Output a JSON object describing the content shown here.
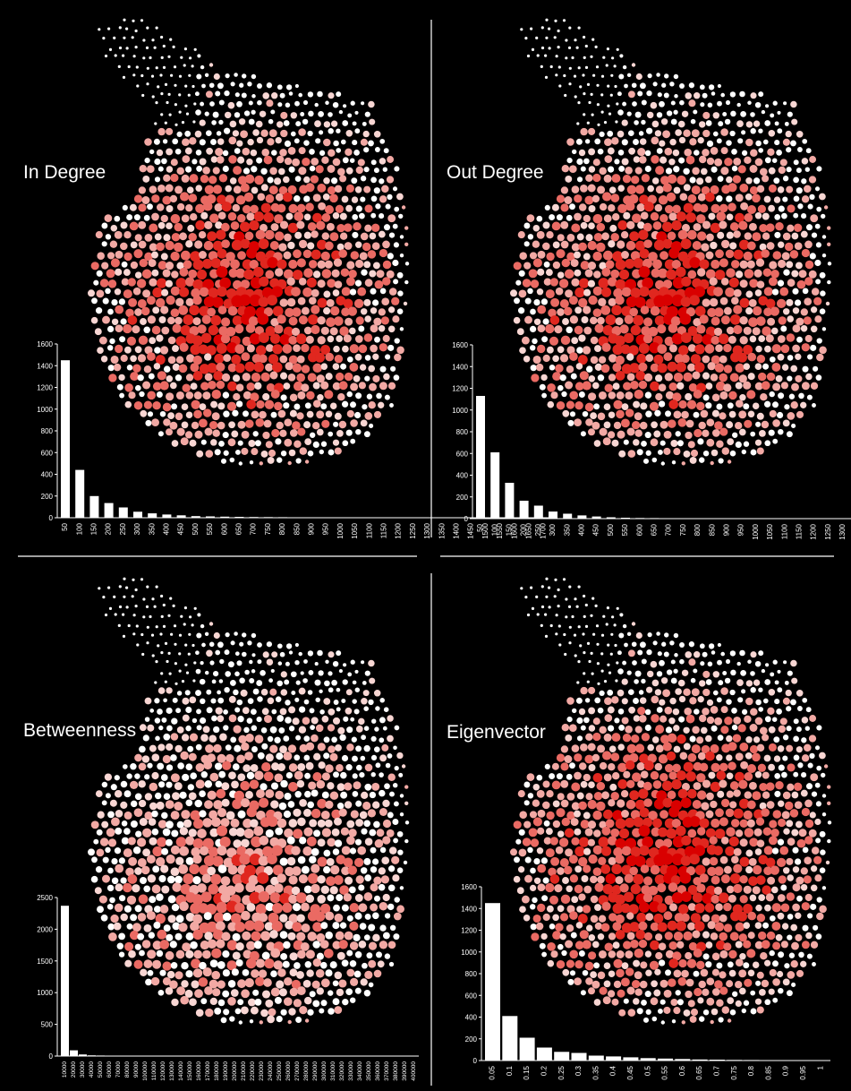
{
  "chart_data": [
    {
      "type": "bar",
      "title": "In Degree",
      "xlabel": "",
      "ylabel": "",
      "ylim": [
        0,
        1600
      ],
      "yticks": [
        0,
        200,
        400,
        600,
        800,
        1000,
        1200,
        1400,
        1600
      ],
      "categories": [
        "50",
        "100",
        "150",
        "200",
        "250",
        "300",
        "350",
        "400",
        "450",
        "500",
        "550",
        "600",
        "650",
        "700",
        "750",
        "800",
        "850",
        "900",
        "950",
        "1000",
        "1050",
        "1100",
        "1150",
        "1200",
        "1250",
        "1300",
        "1350",
        "1400",
        "1450",
        "1500",
        "1550",
        "1600",
        "1650",
        "1700"
      ],
      "values": [
        1450,
        440,
        200,
        135,
        95,
        55,
        40,
        30,
        22,
        15,
        12,
        10,
        8,
        7,
        6,
        5,
        4,
        4,
        3,
        3,
        3,
        2,
        2,
        2,
        1,
        1,
        1,
        1,
        1,
        1,
        1,
        1,
        1,
        1
      ],
      "node_map": "network of nodes sized and shaded red by In Degree"
    },
    {
      "type": "bar",
      "title": "Out Degree",
      "xlabel": "",
      "ylabel": "",
      "ylim": [
        0,
        1600
      ],
      "yticks": [
        0,
        200,
        400,
        600,
        800,
        1000,
        1200,
        1400,
        1600
      ],
      "categories": [
        "50",
        "100",
        "150",
        "200",
        "250",
        "300",
        "350",
        "400",
        "450",
        "500",
        "550",
        "600",
        "650",
        "700",
        "750",
        "800",
        "850",
        "900",
        "950",
        "1000",
        "1050",
        "1100",
        "1150",
        "1200",
        "1250",
        "1300",
        "1350",
        "1400",
        "1450",
        "1500",
        "1550",
        "1600",
        "1650",
        "1700"
      ],
      "values": [
        1130,
        610,
        330,
        165,
        120,
        65,
        45,
        30,
        20,
        12,
        8,
        6,
        5,
        4,
        3,
        3,
        2,
        2,
        2,
        1,
        1,
        1,
        1,
        1,
        1,
        1,
        1,
        1,
        1,
        1,
        1,
        1,
        1,
        1
      ],
      "node_map": "network of nodes sized and shaded red by Out Degree"
    },
    {
      "type": "bar",
      "title": "Betweenness",
      "xlabel": "",
      "ylabel": "",
      "ylim": [
        0,
        2500
      ],
      "yticks": [
        0,
        500,
        1000,
        1500,
        2000,
        2500
      ],
      "categories": [
        "10000",
        "20000",
        "30000",
        "40000",
        "50000",
        "60000",
        "70000",
        "80000",
        "90000",
        "100000",
        "110000",
        "120000",
        "130000",
        "140000",
        "150000",
        "160000",
        "170000",
        "180000",
        "190000",
        "200000",
        "210000",
        "220000",
        "230000",
        "240000",
        "250000",
        "260000",
        "270000",
        "280000",
        "290000",
        "300000",
        "310000",
        "320000",
        "330000",
        "340000",
        "350000",
        "360000",
        "370000",
        "380000",
        "390000",
        "400000"
      ],
      "values": [
        2370,
        90,
        25,
        12,
        8,
        5,
        4,
        3,
        2,
        2,
        2,
        1,
        1,
        1,
        1,
        1,
        1,
        1,
        1,
        1,
        1,
        1,
        1,
        1,
        1,
        1,
        1,
        1,
        1,
        1,
        1,
        1,
        1,
        1,
        1,
        1,
        1,
        1,
        1,
        1
      ],
      "node_map": "network of nodes sized and shaded red by Betweenness"
    },
    {
      "type": "bar",
      "title": "Eigenvector",
      "xlabel": "",
      "ylabel": "",
      "ylim": [
        0,
        1600
      ],
      "yticks": [
        0,
        200,
        400,
        600,
        800,
        1000,
        1200,
        1400,
        1600
      ],
      "categories": [
        "0.05",
        "0.1",
        "0.15",
        "0.2",
        "0.25",
        "0.3",
        "0.35",
        "0.4",
        "0.45",
        "0.5",
        "0.55",
        "0.6",
        "0.65",
        "0.7",
        "0.75",
        "0.8",
        "0.85",
        "0.9",
        "0.95",
        "1"
      ],
      "values": [
        1450,
        410,
        210,
        120,
        80,
        70,
        45,
        38,
        30,
        22,
        18,
        14,
        10,
        8,
        6,
        5,
        4,
        3,
        2,
        2
      ],
      "node_map": "network of nodes sized and shaded red by Eigenvector"
    }
  ],
  "colors": {
    "background": "#000000",
    "bars": "#ffffff",
    "axis": "#ffffff",
    "node_low": "#ffffff",
    "node_mid": "#f2a9a4",
    "node_high": "#e0271f",
    "node_max": "#d90000"
  }
}
